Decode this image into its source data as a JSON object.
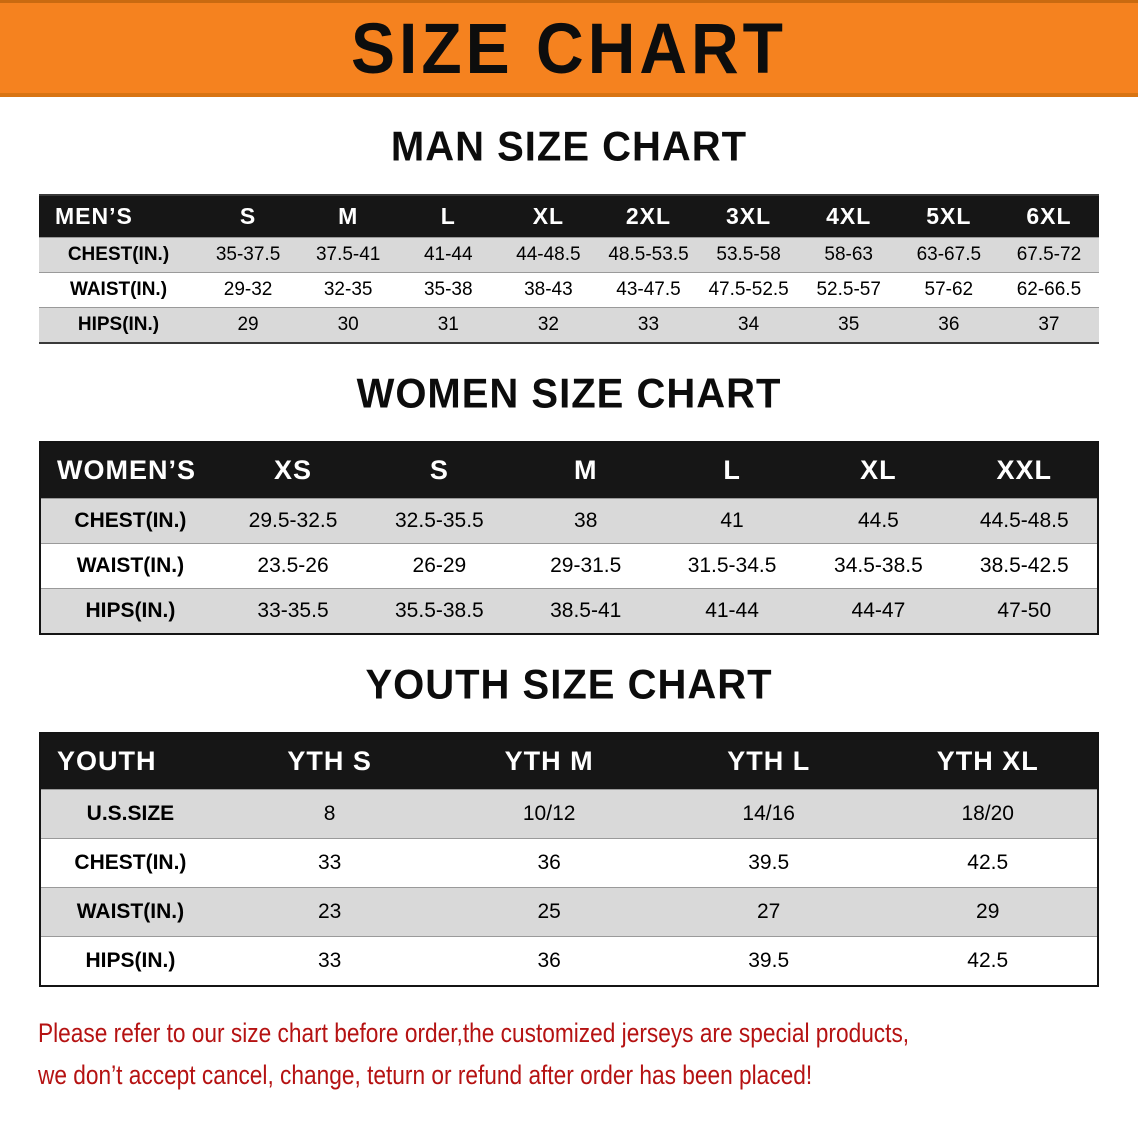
{
  "banner": {
    "title": "SIZE CHART",
    "bg_color": "#f5821f",
    "text_color": "#0d0d0d"
  },
  "chart_data": [
    {
      "type": "table",
      "title": "MAN SIZE CHART",
      "columns": [
        "MEN’S",
        "S",
        "M",
        "L",
        "XL",
        "2XL",
        "3XL",
        "4XL",
        "5XL",
        "6XL"
      ],
      "rows": [
        [
          "CHEST(IN.)",
          "35-37.5",
          "37.5-41",
          "41-44",
          "44-48.5",
          "48.5-53.5",
          "53.5-58",
          "58-63",
          "63-67.5",
          "67.5-72"
        ],
        [
          "WAIST(IN.)",
          "29-32",
          "32-35",
          "35-38",
          "38-43",
          "43-47.5",
          "47.5-52.5",
          "52.5-57",
          "57-62",
          "62-66.5"
        ],
        [
          "HIPS(IN.)",
          "29",
          "30",
          "31",
          "32",
          "33",
          "34",
          "35",
          "36",
          "37"
        ]
      ]
    },
    {
      "type": "table",
      "title": "WOMEN SIZE CHART",
      "columns": [
        "WOMEN’S",
        "XS",
        "S",
        "M",
        "L",
        "XL",
        "XXL"
      ],
      "rows": [
        [
          "CHEST(IN.)",
          "29.5-32.5",
          "32.5-35.5",
          "38",
          "41",
          "44.5",
          "44.5-48.5"
        ],
        [
          "WAIST(IN.)",
          "23.5-26",
          "26-29",
          "29-31.5",
          "31.5-34.5",
          "34.5-38.5",
          "38.5-42.5"
        ],
        [
          "HIPS(IN.)",
          "33-35.5",
          "35.5-38.5",
          "38.5-41",
          "41-44",
          "44-47",
          "47-50"
        ]
      ]
    },
    {
      "type": "table",
      "title": "YOUTH SIZE CHART",
      "columns": [
        "YOUTH",
        "YTH S",
        "YTH M",
        "YTH L",
        "YTH XL"
      ],
      "rows": [
        [
          "U.S.SIZE",
          "8",
          "10/12",
          "14/16",
          "18/20"
        ],
        [
          "CHEST(IN.)",
          "33",
          "36",
          "39.5",
          "42.5"
        ],
        [
          "WAIST(IN.)",
          "23",
          "25",
          "27",
          "29"
        ],
        [
          "HIPS(IN.)",
          "33",
          "36",
          "39.5",
          "42.5"
        ]
      ]
    }
  ],
  "footer": {
    "lines": [
      "Please refer to our size chart before order,the customized jerseys are special products,",
      "we don’t accept cancel, change, teturn or refund after order has been placed!"
    ],
    "text_color": "#b51212"
  },
  "colors": {
    "banner_orange": "#f5821f",
    "table_header_black": "#161616",
    "row_stripe_gray": "#d9d9d9",
    "notice_red": "#b51212"
  }
}
